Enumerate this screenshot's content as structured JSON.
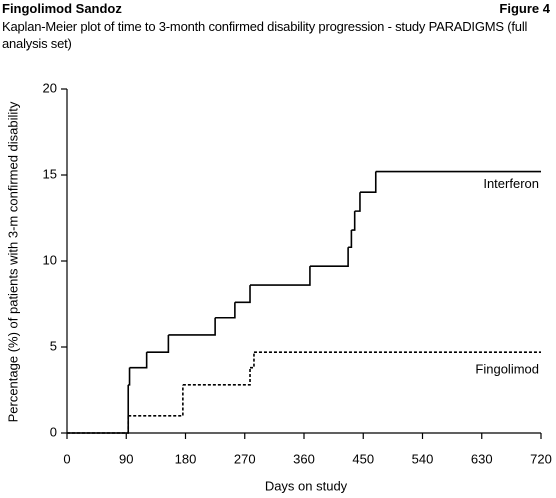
{
  "header": {
    "left": "Fingolimod Sandoz",
    "right": "Figure 4"
  },
  "chart_data": {
    "type": "step",
    "title": "Kaplan-Meier plot of time to 3-month confirmed disability progression - study PARADIGMS (full analysis set)",
    "x_label": "Days on study",
    "y_label": "Percentage (%) of patients with 3-m confirmed disability",
    "xlim": [
      0,
      720
    ],
    "xticks": [
      0,
      90,
      180,
      270,
      360,
      450,
      540,
      630,
      720
    ],
    "ylim": [
      0,
      20
    ],
    "yticks": [
      0,
      5,
      10,
      15,
      20
    ],
    "grid": false,
    "series": [
      {
        "name": "Interferon",
        "color": "#000000",
        "line_style": "solid",
        "x": [
          0,
          93,
          95,
          121,
          154,
          225,
          255,
          278,
          369,
          427,
          432,
          437,
          445,
          469,
          720
        ],
        "values": [
          0,
          2.8,
          3.8,
          4.7,
          5.7,
          6.7,
          7.6,
          8.6,
          9.7,
          10.8,
          11.8,
          12.9,
          14.0,
          15.2,
          15.2
        ]
      },
      {
        "name": "Fingolimod",
        "color": "#000000",
        "line_style": "dotted",
        "x": [
          0,
          93,
          176,
          278,
          284,
          720
        ],
        "values": [
          0,
          1.0,
          2.8,
          3.8,
          4.7,
          4.7
        ]
      }
    ]
  }
}
